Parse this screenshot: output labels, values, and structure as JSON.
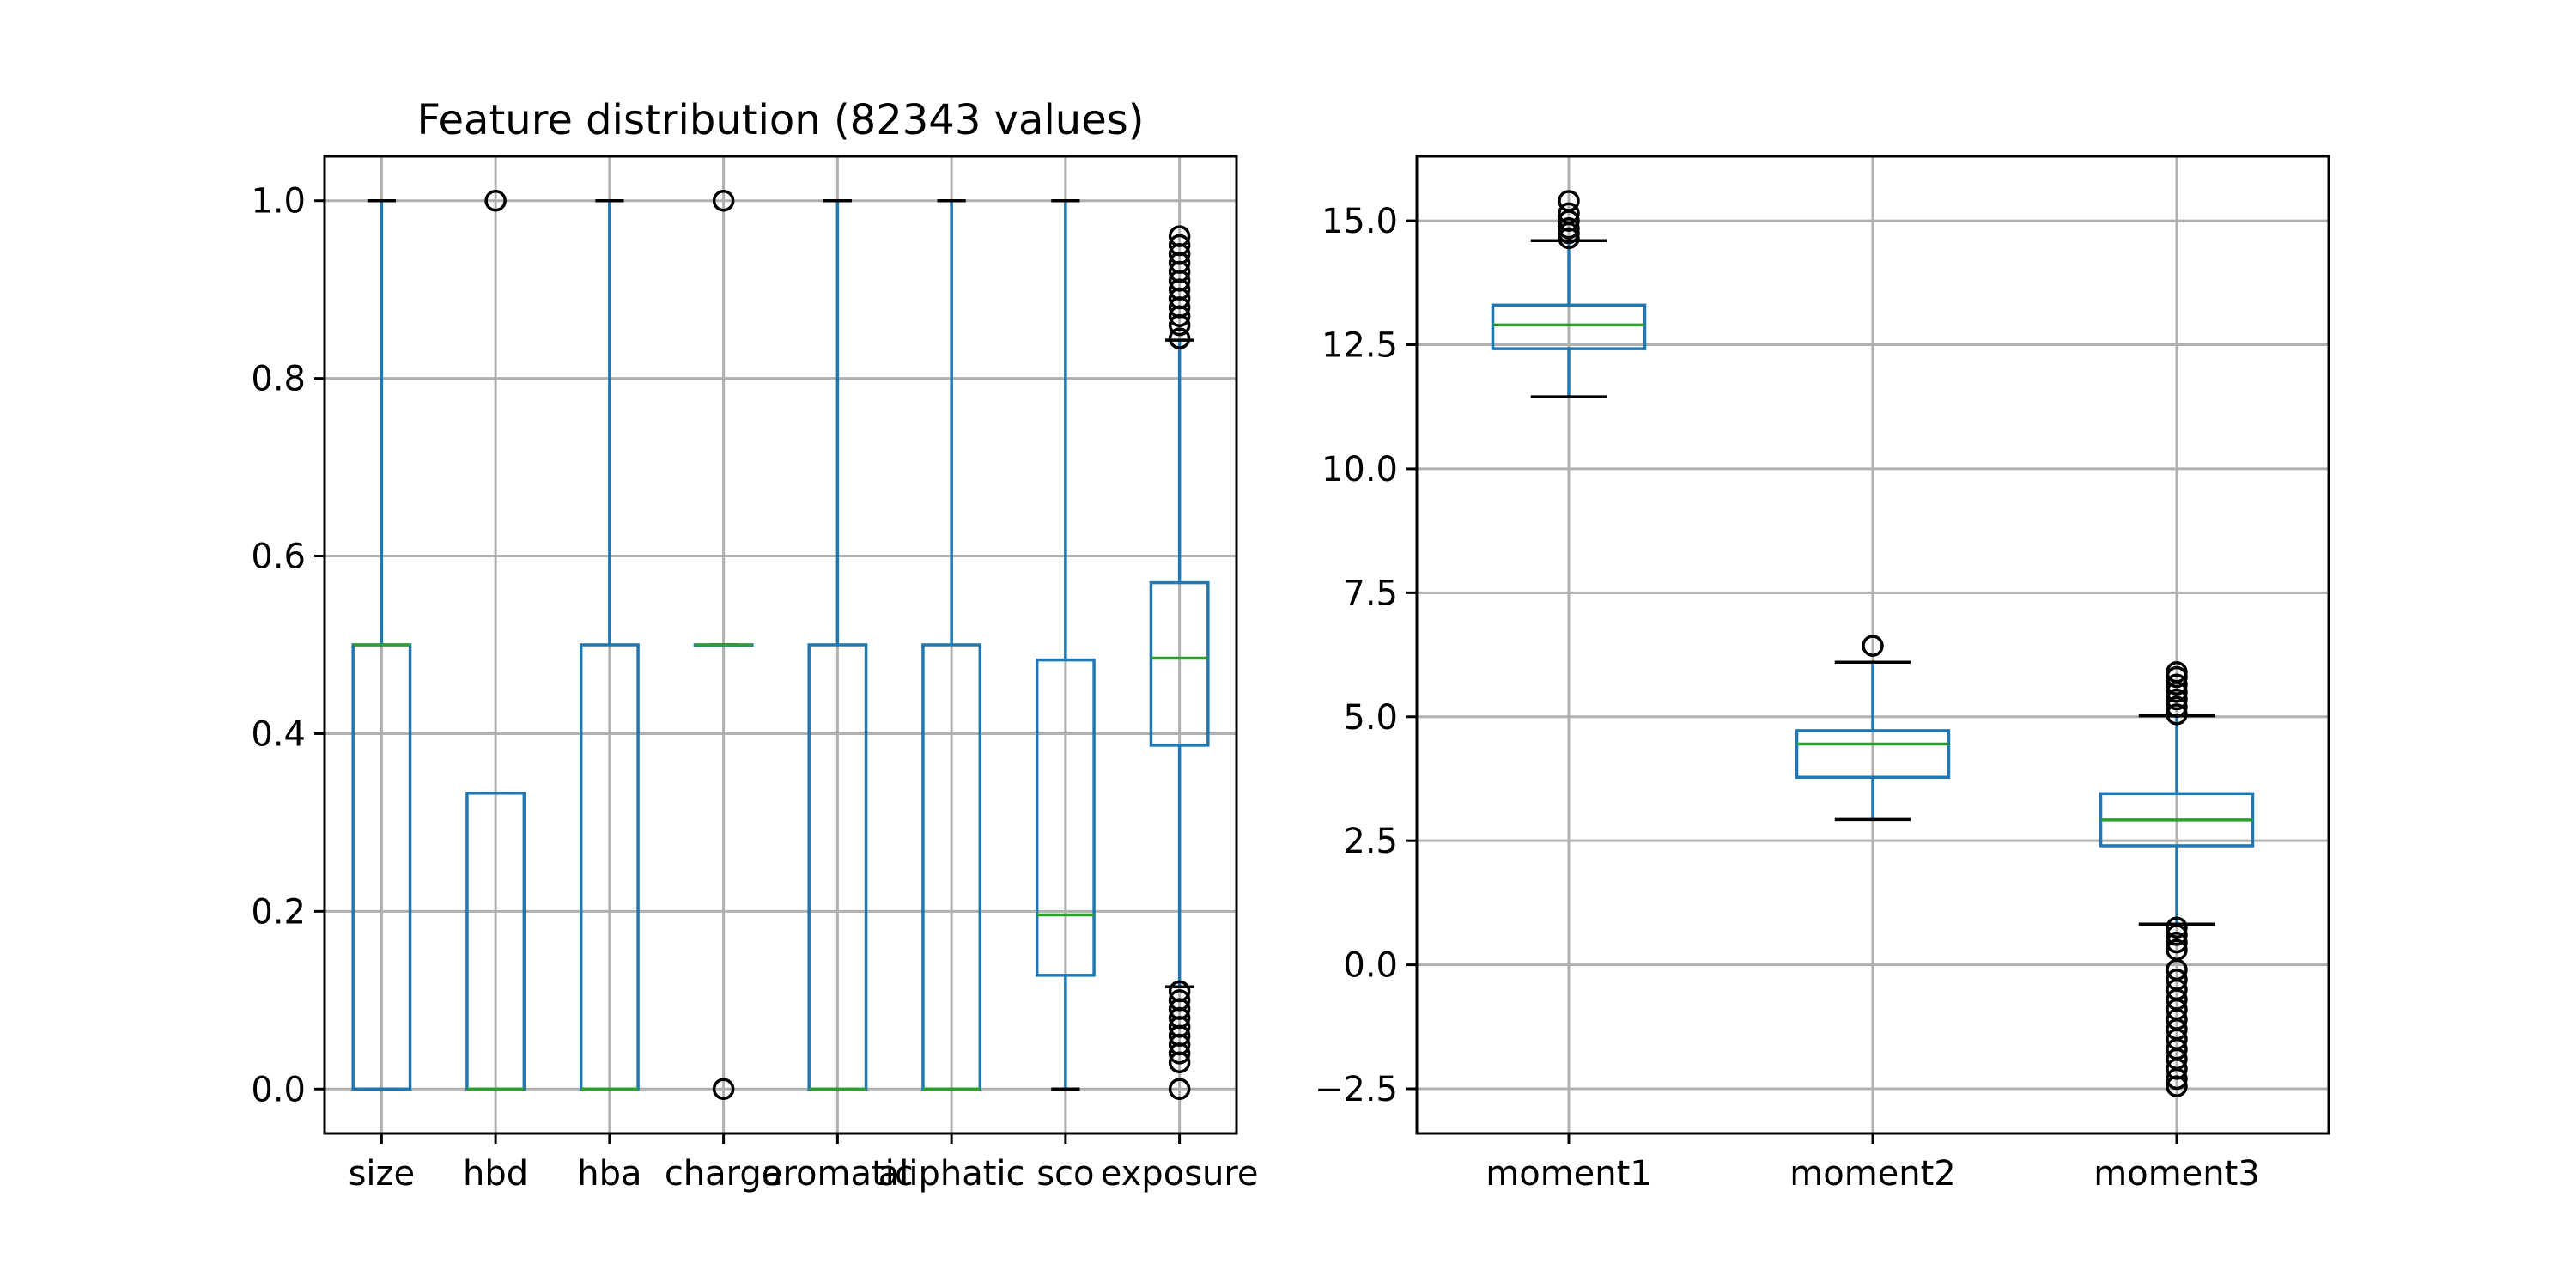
{
  "colors": {
    "box": "#1f77b4",
    "median": "#2ca02c",
    "flier": "#000000",
    "grid": "#b0b0b0"
  },
  "chart_data": [
    {
      "type": "box",
      "title": "Feature distribution (82343 values)",
      "xlabel": "",
      "ylabel": "",
      "grid": true,
      "ylim": [
        -0.05,
        1.05
      ],
      "yticks": [
        0.0,
        0.2,
        0.4,
        0.6,
        0.8,
        1.0
      ],
      "ytick_labels": [
        "0.0",
        "0.2",
        "0.4",
        "0.6",
        "0.8",
        "1.0"
      ],
      "categories": [
        "size",
        "hbd",
        "hba",
        "charge",
        "aromatic",
        "aliphatic",
        "sco",
        "exposure"
      ],
      "boxes": [
        {
          "category": "size",
          "whislo": 0.0,
          "q1": 0.0,
          "med": 0.5,
          "q3": 0.5,
          "whishi": 1.0,
          "fliers": []
        },
        {
          "category": "hbd",
          "whislo": 0.0,
          "q1": 0.0,
          "med": 0.0,
          "q3": 0.333,
          "whishi": 0.333,
          "fliers": [
            1.0
          ]
        },
        {
          "category": "hba",
          "whislo": 0.0,
          "q1": 0.0,
          "med": 0.0,
          "q3": 0.5,
          "whishi": 1.0,
          "fliers": []
        },
        {
          "category": "charge",
          "whislo": 0.5,
          "q1": 0.5,
          "med": 0.5,
          "q3": 0.5,
          "whishi": 0.5,
          "fliers": [
            0.0,
            1.0
          ]
        },
        {
          "category": "aromatic",
          "whislo": 0.0,
          "q1": 0.0,
          "med": 0.0,
          "q3": 0.5,
          "whishi": 1.0,
          "fliers": []
        },
        {
          "category": "aliphatic",
          "whislo": 0.0,
          "q1": 0.0,
          "med": 0.0,
          "q3": 0.5,
          "whishi": 1.0,
          "fliers": []
        },
        {
          "category": "sco",
          "whislo": 0.0,
          "q1": 0.128,
          "med": 0.196,
          "q3": 0.483,
          "whishi": 1.0,
          "fliers": []
        },
        {
          "category": "exposure",
          "whislo": 0.115,
          "q1": 0.387,
          "med": 0.485,
          "q3": 0.57,
          "whishi": 0.843,
          "fliers": [
            0.0,
            0.03,
            0.04,
            0.05,
            0.06,
            0.07,
            0.08,
            0.09,
            0.1,
            0.11,
            0.845,
            0.86,
            0.87,
            0.88,
            0.89,
            0.9,
            0.91,
            0.92,
            0.93,
            0.94,
            0.95,
            0.96
          ]
        }
      ]
    },
    {
      "type": "box",
      "title": "",
      "xlabel": "",
      "ylabel": "",
      "grid": true,
      "ylim": [
        -3.4,
        16.3
      ],
      "yticks": [
        -2.5,
        0.0,
        2.5,
        5.0,
        7.5,
        10.0,
        12.5,
        15.0
      ],
      "ytick_labels": [
        "−2.5",
        "0.0",
        "2.5",
        "5.0",
        "7.5",
        "10.0",
        "12.5",
        "15.0"
      ],
      "categories": [
        "moment1",
        "moment2",
        "moment3"
      ],
      "boxes": [
        {
          "category": "moment1",
          "whislo": 11.45,
          "q1": 12.42,
          "med": 12.9,
          "q3": 13.3,
          "whishi": 14.6,
          "fliers": [
            14.65,
            14.75,
            14.85,
            15.0,
            15.15,
            15.4
          ]
        },
        {
          "category": "moment2",
          "whislo": 2.93,
          "q1": 3.78,
          "med": 4.45,
          "q3": 4.72,
          "whishi": 6.1,
          "fliers": [
            6.43
          ]
        },
        {
          "category": "moment3",
          "whislo": 0.82,
          "q1": 2.4,
          "med": 2.92,
          "q3": 3.45,
          "whishi": 5.02,
          "fliers": [
            -2.45,
            -2.3,
            -2.1,
            -1.9,
            -1.7,
            -1.5,
            -1.3,
            -1.1,
            -0.9,
            -0.7,
            -0.5,
            -0.3,
            -0.1,
            0.3,
            0.45,
            0.6,
            0.75,
            5.05,
            5.2,
            5.35,
            5.5,
            5.65,
            5.8,
            5.9
          ]
        }
      ]
    }
  ]
}
